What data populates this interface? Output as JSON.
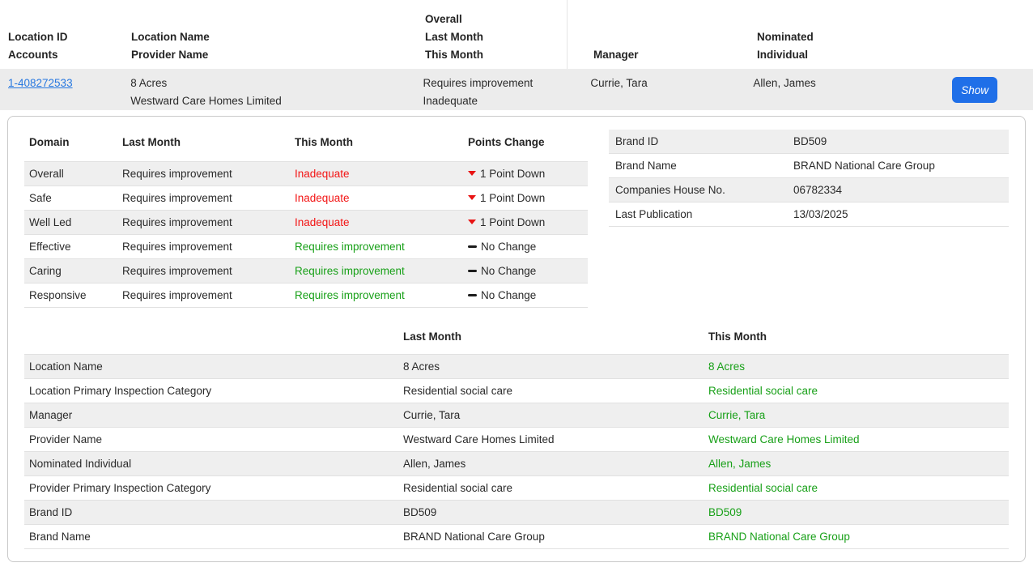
{
  "colors": {
    "link_blue": "#2778e0",
    "button_blue": "#1f6fe8",
    "bad_red": "#f31414",
    "good_green": "#18a018",
    "stripe_gray": "#efefef"
  },
  "locations_table": {
    "header": {
      "location_id": "Location ID",
      "accounts": "Accounts",
      "location_name": "Location Name",
      "provider_name": "Provider Name",
      "overall": "Overall",
      "last_month": "Last Month",
      "this_month": "This Month",
      "manager": "Manager",
      "nominated": "Nominated",
      "individual": "Individual"
    },
    "row": {
      "location_id": "1-408272533",
      "location_name": "8 Acres",
      "provider_name": "Westward Care Homes Limited",
      "overall_last_month": "Requires improvement",
      "overall_this_month": "Inadequate",
      "manager": "Currie, Tara",
      "nominated_individual": "Allen, James",
      "show_label": "Show"
    }
  },
  "domain_table": {
    "headers": [
      "Domain",
      "Last Month",
      "This Month",
      "Points Change"
    ],
    "rows": [
      {
        "domain": "Overall",
        "last_month": "Requires improvement",
        "this_month": "Inadequate",
        "tone": "bad",
        "direction": "down",
        "change": "1 Point Down"
      },
      {
        "domain": "Safe",
        "last_month": "Requires improvement",
        "this_month": "Inadequate",
        "tone": "bad",
        "direction": "down",
        "change": "1 Point Down"
      },
      {
        "domain": "Well Led",
        "last_month": "Requires improvement",
        "this_month": "Inadequate",
        "tone": "bad",
        "direction": "down",
        "change": "1 Point Down"
      },
      {
        "domain": "Effective",
        "last_month": "Requires improvement",
        "this_month": "Requires improvement",
        "tone": "good",
        "direction": "none",
        "change": "No Change"
      },
      {
        "domain": "Caring",
        "last_month": "Requires improvement",
        "this_month": "Requires improvement",
        "tone": "good",
        "direction": "none",
        "change": "No Change"
      },
      {
        "domain": "Responsive",
        "last_month": "Requires improvement",
        "this_month": "Requires improvement",
        "tone": "good",
        "direction": "none",
        "change": "No Change"
      }
    ]
  },
  "brand_info": {
    "rows": [
      {
        "label": "Brand ID",
        "value": "BD509"
      },
      {
        "label": "Brand Name",
        "value": "BRAND National Care Group"
      },
      {
        "label": "Companies House No.",
        "value": "06782334"
      },
      {
        "label": "Last Publication",
        "value": "13/03/2025"
      }
    ]
  },
  "comparison_table": {
    "col_headers": {
      "last_month": "Last Month",
      "this_month": "This Month"
    },
    "rows": [
      {
        "label": "Location Name",
        "last_month": "8 Acres",
        "this_month": "8 Acres"
      },
      {
        "label": "Location Primary Inspection Category",
        "last_month": "Residential social care",
        "this_month": "Residential social care"
      },
      {
        "label": "Manager",
        "last_month": "Currie, Tara",
        "this_month": "Currie, Tara"
      },
      {
        "label": "Provider Name",
        "last_month": "Westward Care Homes Limited",
        "this_month": "Westward Care Homes Limited"
      },
      {
        "label": "Nominated Individual",
        "last_month": "Allen, James",
        "this_month": "Allen, James"
      },
      {
        "label": "Provider Primary Inspection Category",
        "last_month": "Residential social care",
        "this_month": "Residential social care"
      },
      {
        "label": "Brand ID",
        "last_month": "BD509",
        "this_month": "BD509"
      },
      {
        "label": "Brand Name",
        "last_month": "BRAND National Care Group",
        "this_month": "BRAND National Care Group"
      }
    ]
  }
}
